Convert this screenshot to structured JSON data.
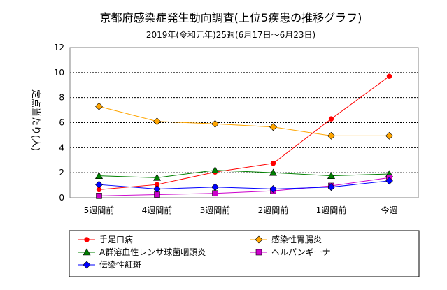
{
  "chart_data": {
    "type": "line",
    "title": "京都府感染症発生動向調査(上位5疾患の推移グラフ)",
    "subtitle": "2019年(令和元年)25週(6月17日～6月23日)",
    "ylabel": "定点当たり(人)",
    "xlabel": "",
    "ylim": [
      0,
      12
    ],
    "yticks": [
      "0",
      "2",
      "4",
      "6",
      "8",
      "10",
      "12"
    ],
    "grid": "horizontal-dashed",
    "legend_position": "bottom",
    "categories": [
      "5週間前",
      "4週間前",
      "3週間前",
      "2週間前",
      "1週間前",
      "今週"
    ],
    "series": [
      {
        "name": "手足口病",
        "values": [
          0.65,
          1.05,
          2.05,
          2.75,
          6.3,
          9.7
        ],
        "color": "#ff0000",
        "marker": "circle"
      },
      {
        "name": "感染性胃腸炎",
        "values": [
          7.3,
          6.1,
          5.9,
          5.65,
          4.95,
          4.95
        ],
        "color": "#ffa500",
        "marker": "diamond"
      },
      {
        "name": "A群溶血性レンサ球菌咽頭炎",
        "values": [
          1.75,
          1.6,
          2.2,
          2.0,
          1.75,
          1.9
        ],
        "color": "#008000",
        "marker": "triangle"
      },
      {
        "name": "ヘルパンギーナ",
        "values": [
          0.15,
          0.25,
          0.35,
          0.55,
          0.95,
          1.6
        ],
        "color": "#cc00cc",
        "marker": "square"
      },
      {
        "name": "伝染性紅斑",
        "values": [
          1.05,
          0.7,
          0.85,
          0.7,
          0.85,
          1.35
        ],
        "color": "#0000ff",
        "marker": "diamond"
      }
    ]
  }
}
